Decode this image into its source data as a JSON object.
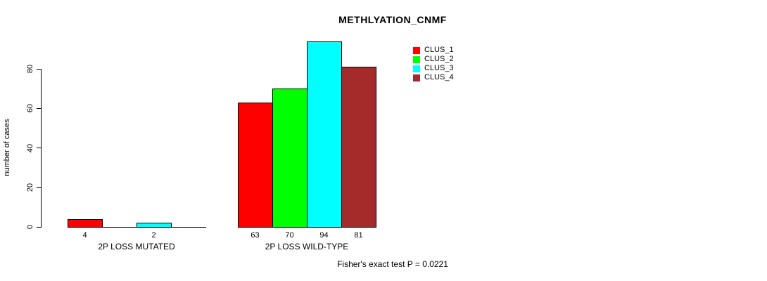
{
  "chart_data": {
    "type": "bar",
    "title": "METHLYATION_CNMF",
    "ylabel": "number of cases",
    "footnote": "Fisher's exact test P = 0.0221",
    "yticks": [
      0,
      20,
      40,
      60,
      80
    ],
    "ylim": [
      0,
      80
    ],
    "grid": false,
    "legend_position": "top-right",
    "categories": [
      "2P LOSS MUTATED",
      "2P LOSS WILD-TYPE"
    ],
    "series": [
      {
        "name": "CLUS_1",
        "color": "#ff0000",
        "values": [
          4,
          63
        ]
      },
      {
        "name": "CLUS_2",
        "color": "#00ff00",
        "values": [
          0,
          70
        ]
      },
      {
        "name": "CLUS_3",
        "color": "#00ffff",
        "values": [
          2,
          94
        ]
      },
      {
        "name": "CLUS_4",
        "color": "#a52a2a",
        "values": [
          0,
          81
        ]
      }
    ],
    "bar_value_labels": {
      "2P LOSS MUTATED": [
        4,
        2
      ],
      "2P LOSS WILD-TYPE": [
        63,
        70,
        94,
        81
      ]
    },
    "axis_color": "#000000",
    "bar_border_color": "#000000"
  }
}
